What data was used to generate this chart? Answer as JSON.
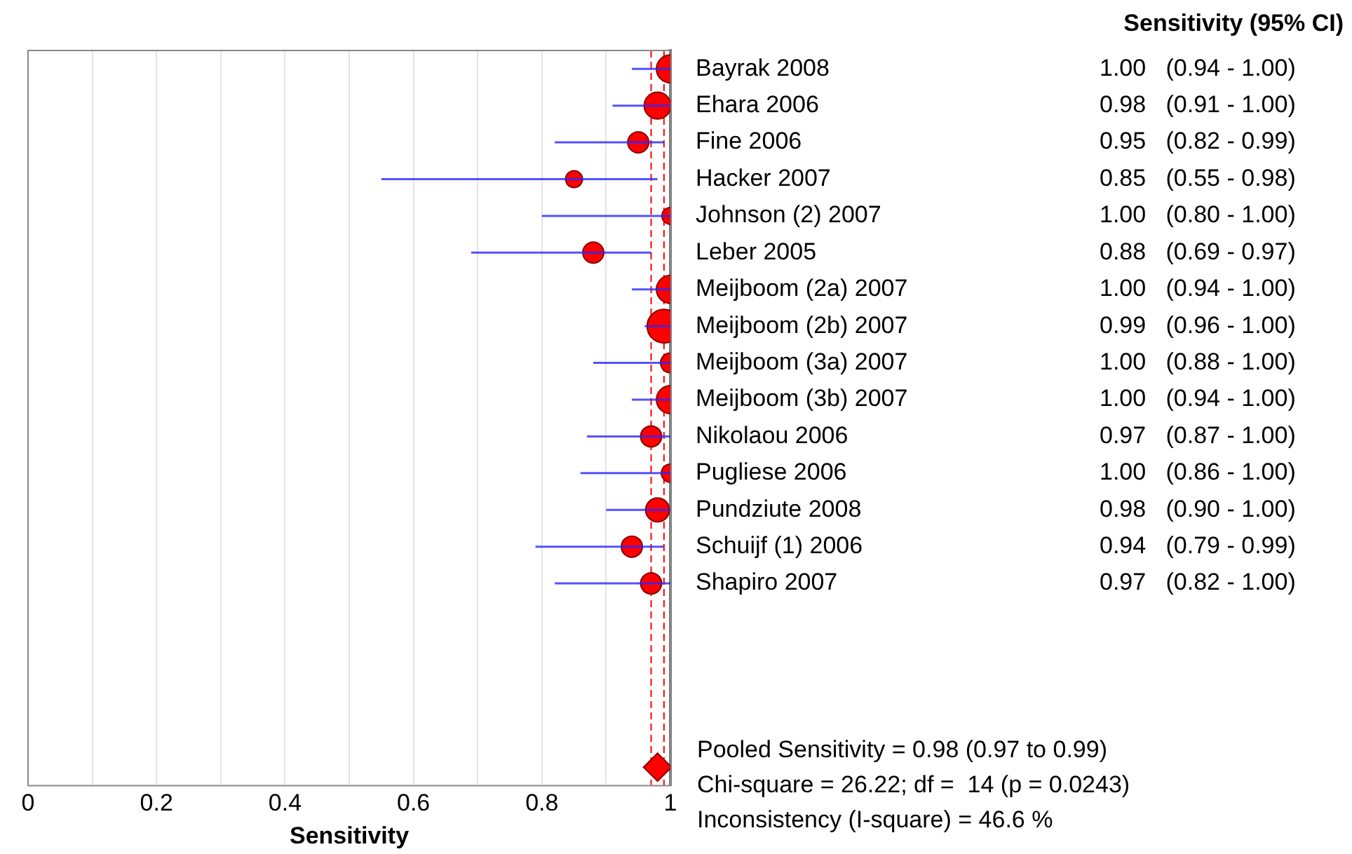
{
  "chart_data": {
    "type": "bubble",
    "orientation": "horizontal",
    "xlabel": "Sensitivity",
    "categories": [
      "Bayrak 2008",
      "Ehara 2006",
      "Fine 2006",
      "Hacker 2007",
      "Johnson (2) 2007",
      "Leber 2005",
      "Meijboom (2a) 2007",
      "Meijboom (2b) 2007",
      "Meijboom (3a) 2007",
      "Meijboom (3b) 2007",
      "Nikolaou 2006",
      "Pugliese 2006",
      "Pundziute 2008",
      "Schuijf (1) 2006",
      "Shapiro 2007",
      null,
      null,
      null,
      null,
      null
    ],
    "series": [
      {
        "color": "#ff0000",
        "marker": "circle",
        "values": [
          1.0,
          0.98,
          0.95,
          0.85,
          1.0,
          0.88,
          1.0,
          0.99,
          1.0,
          1.0,
          0.97,
          1.0,
          0.98,
          0.94,
          0.97,
          null,
          null,
          null,
          null,
          null
        ],
        "errors": [
          [
            0.94,
            1.0
          ],
          [
            0.91,
            1.0
          ],
          [
            0.82,
            0.99
          ],
          [
            0.55,
            0.98
          ],
          [
            0.8,
            1.0
          ],
          [
            0.69,
            0.97
          ],
          [
            0.94,
            1.0
          ],
          [
            0.96,
            1.0
          ],
          [
            0.88,
            1.0
          ],
          [
            0.94,
            1.0
          ],
          [
            0.87,
            1.0
          ],
          [
            0.86,
            1.0
          ],
          [
            0.9,
            1.0
          ],
          [
            0.79,
            0.99
          ],
          [
            0.82,
            1.0
          ],
          null,
          null,
          null,
          null,
          null
        ],
        "sizes": [
          0.69,
          0.63,
          0.39,
          0.25,
          0.25,
          0.39,
          0.69,
          1,
          0.34,
          0.69,
          0.39,
          0.29,
          0.5,
          0.39,
          0.39,
          null,
          null,
          null,
          null,
          null
        ],
        "value_labels": [
          "1.00   (0.94 - 1.00)",
          "0.98   (0.91 - 1.00)",
          "0.95   (0.82 - 0.99)",
          "0.85   (0.55 - 0.98)",
          "1.00   (0.80 - 1.00)",
          "0.88   (0.69 - 0.97)",
          "1.00   (0.94 - 1.00)",
          "0.99   (0.96 - 1.00)",
          "1.00   (0.88 - 1.00)",
          "1.00   (0.94 - 1.00)",
          "0.97   (0.87 - 1.00)",
          "1.00   (0.86 - 1.00)",
          "0.98   (0.90 - 1.00)",
          "0.94   (0.79 - 0.99)",
          "0.97   (0.82 - 1.00)",
          null,
          null,
          null,
          null,
          null
        ]
      },
      {
        "type": "scatter",
        "color": "#ff0000",
        "marker": "diamond",
        "values": [
          null,
          null,
          null,
          null,
          null,
          null,
          null,
          null,
          null,
          null,
          null,
          null,
          null,
          null,
          null,
          null,
          null,
          null,
          null,
          0.98
        ]
      }
    ],
    "xlim": [
      0,
      1
    ],
    "xticks": [
      0,
      {
        "value": 0.1,
        "label": null
      },
      0.2,
      {
        "value": 0.3,
        "label": null
      },
      0.4,
      {
        "value": 0.5,
        "label": null
      },
      0.6,
      {
        "value": 0.7,
        "label": null
      },
      0.8,
      {
        "value": 0.9,
        "label": null
      },
      1
    ],
    "grid": "x",
    "legend": false,
    "ref_lines": [
      {
        "axis": "x",
        "value": 0.97,
        "color": "#ff0000",
        "line_style": "dashed"
      },
      {
        "axis": "x",
        "value": 0.99,
        "color": "#ff0000",
        "line_style": "dashed"
      }
    ],
    "annotations": [
      "Sensitivity (95% CI)",
      "Pooled Sensitivity = 0.98 (0.97 to 0.99)",
      "Chi-square = 26.22; df =  14 (p = 0.0243)",
      "Inconsistency (I-square) = 46.6 %"
    ]
  }
}
